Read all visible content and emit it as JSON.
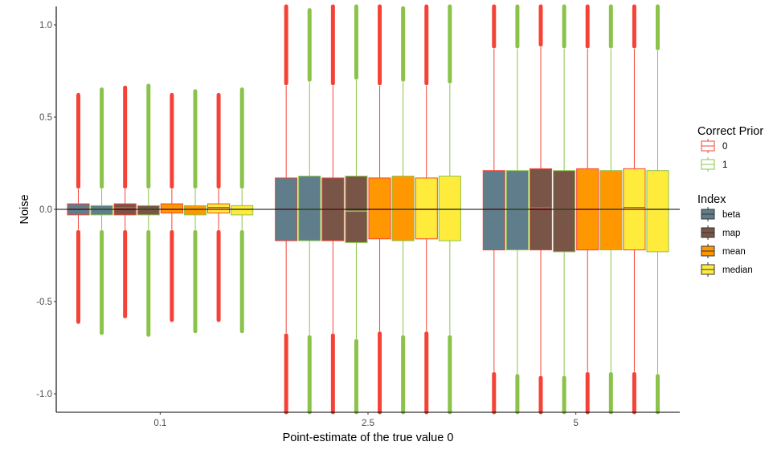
{
  "chart_data": {
    "type": "boxplot",
    "title": "",
    "xlabel": "Point-estimate of the true value 0",
    "ylabel": "Noise",
    "ylim": [
      -1.1,
      1.1
    ],
    "yticks": [
      -1.0,
      -0.5,
      0.0,
      0.5,
      1.0
    ],
    "ytick_labels": [
      "-1.0",
      "-0.5",
      "0.0",
      "0.5",
      "1.0"
    ],
    "categories": [
      "0.1",
      "2.5",
      "5"
    ],
    "reference_line_y": 0,
    "grid": false,
    "legend_position": "right",
    "legends": [
      {
        "title": "Correct Prior",
        "kind": "outline",
        "entries": [
          {
            "label": "0",
            "color": "#F44336"
          },
          {
            "label": "1",
            "color": "#8BC34A"
          }
        ]
      },
      {
        "title": "Index",
        "kind": "fill",
        "entries": [
          {
            "label": "beta",
            "color": "#607D8B"
          },
          {
            "label": "map",
            "color": "#795548"
          },
          {
            "label": "mean",
            "color": "#FF9800"
          },
          {
            "label": "median",
            "color": "#FFEB3B"
          }
        ]
      }
    ],
    "groups": [
      {
        "category": "0.1",
        "boxes": [
          {
            "index": "beta",
            "prior": "0",
            "q1": -0.03,
            "median": 0.0,
            "q3": 0.03,
            "whisker_low": -0.11,
            "whisker_high": 0.11,
            "outlier_min": -0.61,
            "outlier_max": 0.62
          },
          {
            "index": "beta",
            "prior": "1",
            "q1": -0.03,
            "median": 0.0,
            "q3": 0.02,
            "whisker_low": -0.11,
            "whisker_high": 0.11,
            "outlier_min": -0.67,
            "outlier_max": 0.65
          },
          {
            "index": "map",
            "prior": "0",
            "q1": -0.03,
            "median": 0.01,
            "q3": 0.03,
            "whisker_low": -0.11,
            "whisker_high": 0.11,
            "outlier_min": -0.58,
            "outlier_max": 0.66
          },
          {
            "index": "map",
            "prior": "1",
            "q1": -0.03,
            "median": 0.0,
            "q3": 0.02,
            "whisker_low": -0.11,
            "whisker_high": 0.11,
            "outlier_min": -0.68,
            "outlier_max": 0.67
          },
          {
            "index": "mean",
            "prior": "0",
            "q1": -0.02,
            "median": 0.0,
            "q3": 0.03,
            "whisker_low": -0.11,
            "whisker_high": 0.11,
            "outlier_min": -0.6,
            "outlier_max": 0.62
          },
          {
            "index": "mean",
            "prior": "1",
            "q1": -0.03,
            "median": 0.0,
            "q3": 0.02,
            "whisker_low": -0.11,
            "whisker_high": 0.11,
            "outlier_min": -0.66,
            "outlier_max": 0.64
          },
          {
            "index": "median",
            "prior": "0",
            "q1": -0.02,
            "median": 0.01,
            "q3": 0.03,
            "whisker_low": -0.11,
            "whisker_high": 0.11,
            "outlier_min": -0.6,
            "outlier_max": 0.62
          },
          {
            "index": "median",
            "prior": "1",
            "q1": -0.03,
            "median": 0.0,
            "q3": 0.02,
            "whisker_low": -0.11,
            "whisker_high": 0.11,
            "outlier_min": -0.66,
            "outlier_max": 0.65
          }
        ]
      },
      {
        "category": "2.5",
        "boxes": [
          {
            "index": "beta",
            "prior": "0",
            "q1": -0.17,
            "median": 0.0,
            "q3": 0.17,
            "whisker_low": -0.67,
            "whisker_high": 0.67,
            "outlier_min": -1.1,
            "outlier_max": 1.1
          },
          {
            "index": "beta",
            "prior": "1",
            "q1": -0.17,
            "median": 0.0,
            "q3": 0.18,
            "whisker_low": -0.68,
            "whisker_high": 0.69,
            "outlier_min": -1.1,
            "outlier_max": 1.08
          },
          {
            "index": "map",
            "prior": "0",
            "q1": -0.17,
            "median": 0.0,
            "q3": 0.17,
            "whisker_low": -0.67,
            "whisker_high": 0.67,
            "outlier_min": -1.1,
            "outlier_max": 1.1
          },
          {
            "index": "map",
            "prior": "1",
            "q1": -0.18,
            "median": -0.01,
            "q3": 0.18,
            "whisker_low": -0.7,
            "whisker_high": 0.7,
            "outlier_min": -1.1,
            "outlier_max": 1.1
          },
          {
            "index": "mean",
            "prior": "0",
            "q1": -0.16,
            "median": 0.0,
            "q3": 0.17,
            "whisker_low": -0.66,
            "whisker_high": 0.67,
            "outlier_min": -1.1,
            "outlier_max": 1.1
          },
          {
            "index": "mean",
            "prior": "1",
            "q1": -0.17,
            "median": 0.0,
            "q3": 0.18,
            "whisker_low": -0.68,
            "whisker_high": 0.69,
            "outlier_min": -1.1,
            "outlier_max": 1.09
          },
          {
            "index": "median",
            "prior": "0",
            "q1": -0.16,
            "median": 0.0,
            "q3": 0.17,
            "whisker_low": -0.66,
            "whisker_high": 0.67,
            "outlier_min": -1.1,
            "outlier_max": 1.1
          },
          {
            "index": "median",
            "prior": "1",
            "q1": -0.17,
            "median": 0.0,
            "q3": 0.18,
            "whisker_low": -0.68,
            "whisker_high": 0.68,
            "outlier_min": -1.1,
            "outlier_max": 1.1
          }
        ]
      },
      {
        "category": "5",
        "boxes": [
          {
            "index": "beta",
            "prior": "0",
            "q1": -0.22,
            "median": 0.0,
            "q3": 0.21,
            "whisker_low": -0.88,
            "whisker_high": 0.87,
            "outlier_min": -1.1,
            "outlier_max": 1.1
          },
          {
            "index": "beta",
            "prior": "1",
            "q1": -0.22,
            "median": 0.0,
            "q3": 0.21,
            "whisker_low": -0.89,
            "whisker_high": 0.87,
            "outlier_min": -1.1,
            "outlier_max": 1.1
          },
          {
            "index": "map",
            "prior": "0",
            "q1": -0.22,
            "median": 0.01,
            "q3": 0.22,
            "whisker_low": -0.9,
            "whisker_high": 0.88,
            "outlier_min": -1.1,
            "outlier_max": 1.1
          },
          {
            "index": "map",
            "prior": "1",
            "q1": -0.23,
            "median": 0.0,
            "q3": 0.21,
            "whisker_low": -0.9,
            "whisker_high": 0.87,
            "outlier_min": -1.1,
            "outlier_max": 1.1
          },
          {
            "index": "mean",
            "prior": "0",
            "q1": -0.22,
            "median": 0.0,
            "q3": 0.22,
            "whisker_low": -0.88,
            "whisker_high": 0.87,
            "outlier_min": -1.1,
            "outlier_max": 1.1
          },
          {
            "index": "mean",
            "prior": "1",
            "q1": -0.22,
            "median": 0.0,
            "q3": 0.21,
            "whisker_low": -0.88,
            "whisker_high": 0.87,
            "outlier_min": -1.1,
            "outlier_max": 1.1
          },
          {
            "index": "median",
            "prior": "0",
            "q1": -0.22,
            "median": 0.01,
            "q3": 0.22,
            "whisker_low": -0.88,
            "whisker_high": 0.87,
            "outlier_min": -1.1,
            "outlier_max": 1.1
          },
          {
            "index": "median",
            "prior": "1",
            "q1": -0.23,
            "median": 0.0,
            "q3": 0.21,
            "whisker_low": -0.89,
            "whisker_high": 0.86,
            "outlier_min": -1.1,
            "outlier_max": 1.1
          }
        ]
      }
    ]
  }
}
